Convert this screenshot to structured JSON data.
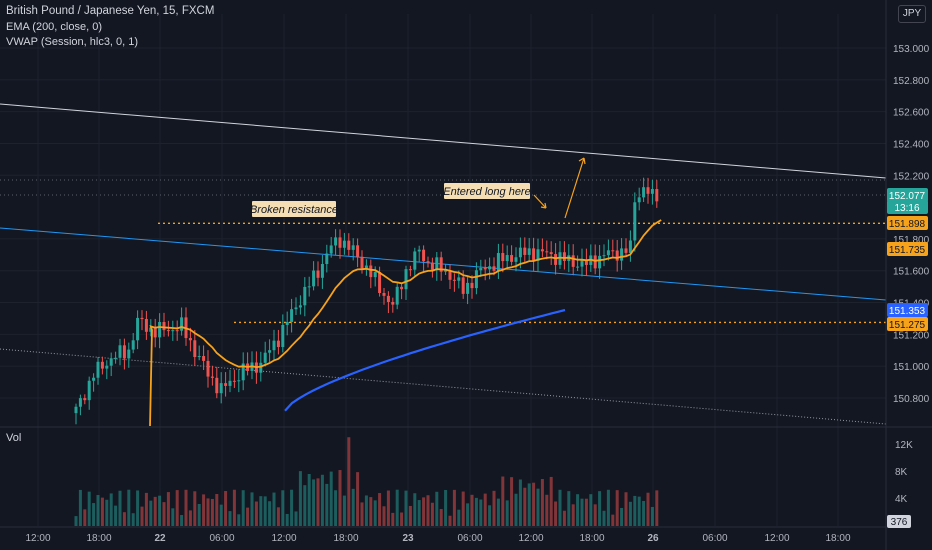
{
  "header": {
    "title": "British Pound / Japanese Yen, 15, FXCM",
    "ema": "EMA (200, close, 0)",
    "vwap": "VWAP (Session, hlc3, 0, 1)",
    "volume_label": "Vol",
    "currency": "JPY"
  },
  "colors": {
    "background": "#131722",
    "up": "#26a69a",
    "down": "#ef5350",
    "ema": "#2962ff",
    "vwap": "#f7a21b",
    "trendline_upper": "#d1d4dc",
    "trendline_blue": "#2196f3",
    "level_orange": "#f7a21b",
    "annotation_bg": "#f5deb3"
  },
  "chart_data": {
    "type": "candlestick",
    "price_axis": {
      "min": 150.7,
      "max": 153.2,
      "ticks": [
        "153.000",
        "152.800",
        "152.600",
        "152.400",
        "152.200",
        "151.800",
        "151.600",
        "151.400",
        "151.200",
        "151.000",
        "150.800"
      ]
    },
    "time_axis": {
      "ticks": [
        "12:00",
        "18:00",
        "22",
        "06:00",
        "12:00",
        "18:00",
        "23",
        "06:00",
        "12:00",
        "18:00",
        "26",
        "06:00",
        "12:00",
        "18:00"
      ]
    },
    "volume_axis": {
      "ticks": [
        "12K",
        "8K",
        "4K"
      ]
    },
    "price_labels": [
      {
        "text": "152.077",
        "kind": "last"
      },
      {
        "text": "13:16",
        "kind": "countdown"
      },
      {
        "text": "151.898",
        "kind": "level"
      },
      {
        "text": "151.735",
        "kind": "vwap"
      },
      {
        "text": "151.353",
        "kind": "ema"
      },
      {
        "text": "151.275",
        "kind": "level"
      }
    ],
    "volume_last": "376",
    "horizontal_levels": [
      151.898,
      151.275
    ],
    "annotations": [
      "Broken resistance",
      "Entered long here"
    ],
    "ohlc_anchors": [
      [
        0,
        150.72
      ],
      [
        4,
        150.95
      ],
      [
        8,
        151.05
      ],
      [
        12,
        151.1
      ],
      [
        14,
        151.28
      ],
      [
        18,
        151.22
      ],
      [
        24,
        151.25
      ],
      [
        30,
        150.95
      ],
      [
        33,
        150.85
      ],
      [
        38,
        150.97
      ],
      [
        42,
        151.02
      ],
      [
        46,
        151.18
      ],
      [
        50,
        151.38
      ],
      [
        55,
        151.6
      ],
      [
        58,
        151.75
      ],
      [
        60,
        151.8
      ],
      [
        63,
        151.72
      ],
      [
        66,
        151.62
      ],
      [
        70,
        151.45
      ],
      [
        72,
        151.38
      ],
      [
        75,
        151.6
      ],
      [
        78,
        151.72
      ],
      [
        80,
        151.65
      ],
      [
        84,
        151.6
      ],
      [
        88,
        151.48
      ],
      [
        92,
        151.6
      ],
      [
        96,
        151.66
      ],
      [
        100,
        151.7
      ],
      [
        104,
        151.72
      ],
      [
        108,
        151.7
      ],
      [
        112,
        151.66
      ],
      [
        116,
        151.64
      ],
      [
        120,
        151.7
      ],
      [
        124,
        151.72
      ],
      [
        126,
        151.74
      ],
      [
        127,
        152.05
      ],
      [
        129,
        152.12
      ],
      [
        131,
        152.06
      ],
      [
        132,
        152.08
      ]
    ]
  }
}
